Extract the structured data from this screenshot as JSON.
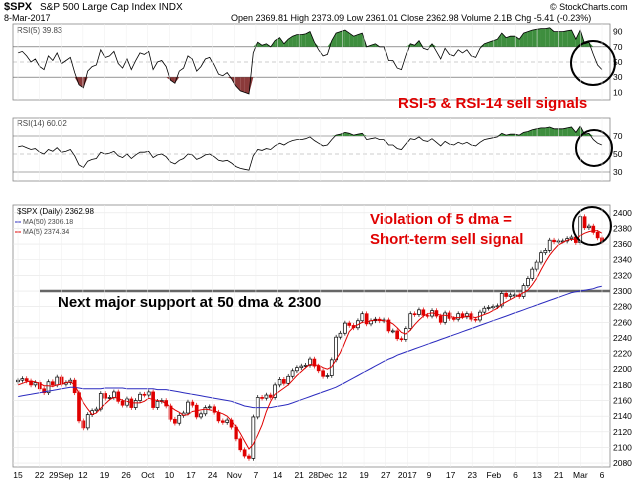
{
  "header": {
    "symbol": "$SPX",
    "name": "S&P 500 Large Cap Index INDX",
    "date": "8-Mar-2017",
    "quote": "Open 2369.81  High 2373.09  Low 2361.01  Close 2362.98  Volume 2.1B  Chg -5.41 (-0.23%)",
    "brand": "© StockCharts.com"
  },
  "panels": {
    "rsi5": {
      "label": "RSI(5) 39.83",
      "ticks": [
        "90",
        "70",
        "50",
        "30",
        "10"
      ],
      "annotation": "RSI-5 & RSI-14 sell signals"
    },
    "rsi14": {
      "label": "RSI(14) 60.02",
      "ticks": [
        "70",
        "50",
        "30"
      ]
    },
    "price": {
      "legend": [
        "$SPX (Daily) 2362.98",
        "MA(50) 2306.18",
        "MA(5) 2374.34"
      ],
      "ticks": [
        "2400",
        "2380",
        "2360",
        "2340",
        "2320",
        "2300",
        "2280",
        "2260",
        "2240",
        "2220",
        "2200",
        "2180",
        "2160",
        "2140",
        "2120",
        "2100",
        "2080"
      ],
      "annotation1": "Violation of 5 dma =",
      "annotation2": "Short-term sell signal",
      "annotation3": "Next major support at 50 dma & 2300"
    }
  },
  "colors": {
    "up": "#000000",
    "down": "#e00000",
    "ma50": "#2b2bbf",
    "ma5": "#e00000",
    "rsi_fill_high": "#3e8e3e",
    "rsi_fill_low": "#8b3a3a",
    "annotation_red": "#e00000",
    "support_line": "#666666"
  },
  "chart_data": {
    "type": "candlestick",
    "x_labels": [
      "15",
      "22",
      "29Sep",
      "12",
      "19",
      "26",
      "Oct",
      "10",
      "17",
      "24",
      "Nov",
      "7",
      "14",
      "21",
      "28Dec",
      "12",
      "19",
      "27",
      "2017",
      "9",
      "17",
      "23",
      "Feb",
      "6",
      "13",
      "21",
      "Mar",
      "6"
    ],
    "ylim": [
      2075,
      2410
    ],
    "support_level": 2300,
    "close": [
      2186,
      2188,
      2185,
      2180,
      2183,
      2175,
      2170,
      2184,
      2180,
      2190,
      2181,
      2183,
      2186,
      2170,
      2134,
      2125,
      2142,
      2147,
      2149,
      2169,
      2163,
      2164,
      2171,
      2159,
      2154,
      2162,
      2151,
      2160,
      2168,
      2167,
      2171,
      2151,
      2159,
      2160,
      2153,
      2136,
      2131,
      2141,
      2144,
      2158,
      2154,
      2139,
      2143,
      2151,
      2152,
      2145,
      2134,
      2132,
      2135,
      2126,
      2111,
      2097,
      2089,
      2086,
      2139,
      2164,
      2163,
      2167,
      2164,
      2180,
      2187,
      2182,
      2191,
      2198,
      2202,
      2204,
      2205,
      2213,
      2204,
      2198,
      2191,
      2192,
      2212,
      2241,
      2246,
      2259,
      2256,
      2253,
      2262,
      2271,
      2258,
      2262,
      2264,
      2262,
      2263,
      2249,
      2249,
      2239,
      2238,
      2252,
      2271,
      2270,
      2276,
      2269,
      2268,
      2275,
      2268,
      2260,
      2272,
      2265,
      2264,
      2271,
      2267,
      2271,
      2264,
      2263,
      2273,
      2278,
      2279,
      2280,
      2281,
      2297,
      2293,
      2295,
      2295,
      2293,
      2307,
      2316,
      2328,
      2337,
      2349,
      2352,
      2365,
      2363,
      2364,
      2364,
      2367,
      2369,
      2362,
      2395,
      2381,
      2383,
      2375,
      2368,
      2363
    ],
    "ma5": [
      2180,
      2182,
      2184,
      2185,
      2184,
      2182,
      2179,
      2179,
      2178,
      2180,
      2181,
      2183,
      2184,
      2180,
      2169,
      2157,
      2149,
      2142,
      2144,
      2150,
      2156,
      2161,
      2164,
      2163,
      2160,
      2159,
      2157,
      2157,
      2157,
      2159,
      2163,
      2161,
      2160,
      2159,
      2156,
      2152,
      2148,
      2145,
      2141,
      2142,
      2146,
      2147,
      2148,
      2149,
      2148,
      2147,
      2145,
      2143,
      2140,
      2134,
      2127,
      2118,
      2108,
      2098,
      2104,
      2116,
      2129,
      2146,
      2159,
      2168,
      2172,
      2176,
      2180,
      2186,
      2192,
      2197,
      2202,
      2206,
      2205,
      2205,
      2202,
      2200,
      2203,
      2212,
      2221,
      2235,
      2248,
      2254,
      2257,
      2260,
      2260,
      2262,
      2263,
      2263,
      2262,
      2261,
      2258,
      2253,
      2247,
      2245,
      2250,
      2257,
      2263,
      2268,
      2271,
      2272,
      2271,
      2269,
      2269,
      2268,
      2266,
      2266,
      2266,
      2268,
      2267,
      2266,
      2268,
      2270,
      2272,
      2275,
      2278,
      2283,
      2286,
      2289,
      2292,
      2295,
      2298,
      2301,
      2308,
      2316,
      2327,
      2337,
      2346,
      2353,
      2359,
      2362,
      2365,
      2366,
      2366,
      2371,
      2374,
      2376,
      2377,
      2377,
      2374
    ],
    "ma50": [
      2165,
      2166,
      2167,
      2168,
      2169,
      2170,
      2171,
      2172,
      2173,
      2174,
      2175,
      2176,
      2177,
      2177,
      2176,
      2175,
      2175,
      2175,
      2175,
      2175,
      2176,
      2176,
      2176,
      2176,
      2176,
      2175,
      2175,
      2175,
      2175,
      2175,
      2175,
      2175,
      2174,
      2174,
      2174,
      2173,
      2172,
      2171,
      2170,
      2169,
      2168,
      2167,
      2166,
      2165,
      2164,
      2163,
      2162,
      2161,
      2160,
      2159,
      2157,
      2155,
      2153,
      2152,
      2151,
      2151,
      2151,
      2151,
      2151,
      2152,
      2153,
      2154,
      2155,
      2157,
      2159,
      2161,
      2163,
      2165,
      2167,
      2169,
      2171,
      2173,
      2175,
      2177,
      2180,
      2183,
      2186,
      2189,
      2192,
      2195,
      2198,
      2201,
      2204,
      2207,
      2210,
      2213,
      2215,
      2218,
      2220,
      2222,
      2224,
      2226,
      2228,
      2230,
      2232,
      2234,
      2236,
      2238,
      2240,
      2242,
      2244,
      2246,
      2248,
      2250,
      2252,
      2254,
      2256,
      2258,
      2260,
      2262,
      2264,
      2266,
      2268,
      2270,
      2272,
      2274,
      2276,
      2278,
      2280,
      2282,
      2284,
      2286,
      2288,
      2290,
      2292,
      2294,
      2296,
      2298,
      2299,
      2300,
      2301,
      2302,
      2303,
      2305,
      2306
    ],
    "rsi5": [
      62,
      64,
      58,
      50,
      54,
      44,
      40,
      58,
      52,
      62,
      48,
      52,
      56,
      36,
      20,
      16,
      38,
      44,
      46,
      66,
      56,
      58,
      64,
      48,
      42,
      54,
      40,
      52,
      62,
      60,
      64,
      40,
      50,
      52,
      44,
      26,
      22,
      38,
      42,
      58,
      54,
      38,
      44,
      54,
      56,
      46,
      34,
      32,
      36,
      28,
      18,
      12,
      10,
      8,
      62,
      76,
      72,
      74,
      70,
      78,
      82,
      74,
      80,
      84,
      86,
      86,
      87,
      90,
      76,
      66,
      58,
      60,
      78,
      88,
      90,
      92,
      88,
      84,
      86,
      88,
      70,
      72,
      74,
      70,
      70,
      52,
      52,
      42,
      40,
      58,
      74,
      72,
      78,
      68,
      66,
      74,
      64,
      54,
      68,
      60,
      58,
      66,
      62,
      66,
      58,
      56,
      68,
      74,
      76,
      78,
      80,
      88,
      82,
      84,
      84,
      80,
      88,
      90,
      92,
      93,
      94,
      94,
      95,
      90,
      90,
      90,
      91,
      92,
      80,
      92,
      74,
      76,
      60,
      46,
      40
    ],
    "rsi14": [
      58,
      59,
      57,
      55,
      56,
      52,
      50,
      55,
      53,
      57,
      52,
      53,
      55,
      48,
      38,
      35,
      42,
      44,
      45,
      52,
      50,
      51,
      53,
      48,
      46,
      50,
      45,
      49,
      52,
      52,
      53,
      46,
      49,
      50,
      47,
      41,
      39,
      43,
      45,
      50,
      49,
      44,
      46,
      49,
      50,
      47,
      43,
      42,
      43,
      40,
      36,
      34,
      33,
      32,
      48,
      55,
      54,
      56,
      55,
      59,
      62,
      60,
      63,
      65,
      66,
      66,
      67,
      69,
      65,
      62,
      59,
      60,
      66,
      71,
      72,
      74,
      73,
      71,
      72,
      73,
      66,
      67,
      68,
      66,
      66,
      60,
      60,
      56,
      55,
      61,
      67,
      66,
      69,
      65,
      64,
      67,
      63,
      59,
      64,
      61,
      60,
      63,
      61,
      63,
      60,
      59,
      63,
      66,
      67,
      68,
      69,
      73,
      71,
      72,
      72,
      71,
      74,
      75,
      77,
      78,
      79,
      79,
      80,
      78,
      78,
      78,
      79,
      80,
      74,
      81,
      72,
      73,
      66,
      62,
      60
    ]
  }
}
